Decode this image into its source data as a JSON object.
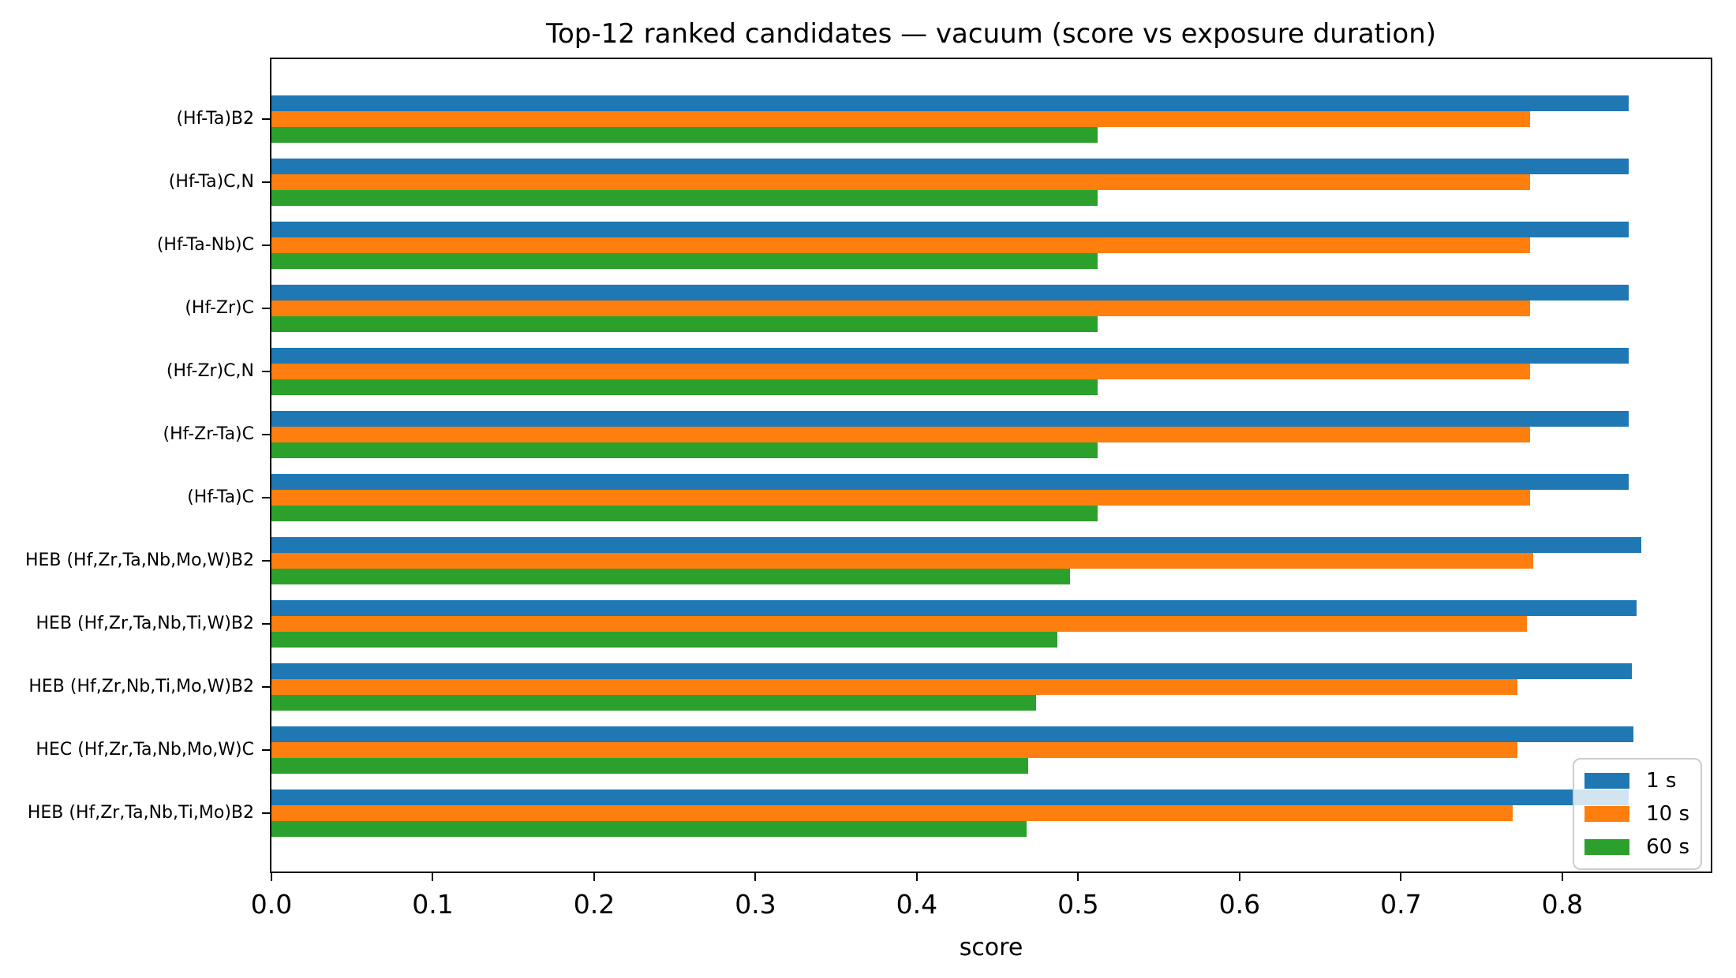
{
  "chart_data": {
    "type": "bar",
    "orientation": "horizontal",
    "title": "Top-12 ranked candidates — vacuum (score vs exposure duration)",
    "xlabel": "score",
    "ylabel": "",
    "xlim": [
      0,
      0.892
    ],
    "grid": false,
    "background_color": "#ffffff",
    "categories_order": "top-to-bottom",
    "categories": [
      "(Hf-Ta)B2",
      "(Hf-Ta)C,N",
      "(Hf-Ta-Nb)C",
      "(Hf-Zr)C",
      "(Hf-Zr)C,N",
      "(Hf-Zr-Ta)C",
      "(Hf-Ta)C",
      "HEB (Hf,Zr,Ta,Nb,Mo,W)B2",
      "HEB (Hf,Zr,Ta,Nb,Ti,W)B2",
      "HEB (Hf,Zr,Nb,Ti,Mo,W)B2",
      "HEC (Hf,Zr,Ta,Nb,Mo,W)C",
      "HEB (Hf,Zr,Ta,Nb,Ti,Mo)B2"
    ],
    "series": [
      {
        "name": "1 s",
        "color": "#1f77b4",
        "values": [
          0.841,
          0.841,
          0.841,
          0.841,
          0.841,
          0.841,
          0.841,
          0.849,
          0.846,
          0.843,
          0.844,
          0.841
        ]
      },
      {
        "name": "10 s",
        "color": "#ff7f0e",
        "values": [
          0.78,
          0.78,
          0.78,
          0.78,
          0.78,
          0.78,
          0.78,
          0.782,
          0.778,
          0.772,
          0.772,
          0.769
        ]
      },
      {
        "name": "60 s",
        "color": "#2ca02c",
        "values": [
          0.512,
          0.512,
          0.512,
          0.512,
          0.512,
          0.512,
          0.512,
          0.495,
          0.487,
          0.474,
          0.469,
          0.468
        ]
      }
    ],
    "xticks": [
      {
        "value": 0.0,
        "label": "0.0"
      },
      {
        "value": 0.1,
        "label": "0.1"
      },
      {
        "value": 0.2,
        "label": "0.2"
      },
      {
        "value": 0.3,
        "label": "0.3"
      },
      {
        "value": 0.4,
        "label": "0.4"
      },
      {
        "value": 0.5,
        "label": "0.5"
      },
      {
        "value": 0.6,
        "label": "0.6"
      },
      {
        "value": 0.7,
        "label": "0.7"
      },
      {
        "value": 0.8,
        "label": "0.8"
      }
    ],
    "legend": {
      "position": "lower right",
      "labels": [
        "1 s",
        "10 s",
        "60 s"
      ]
    }
  }
}
